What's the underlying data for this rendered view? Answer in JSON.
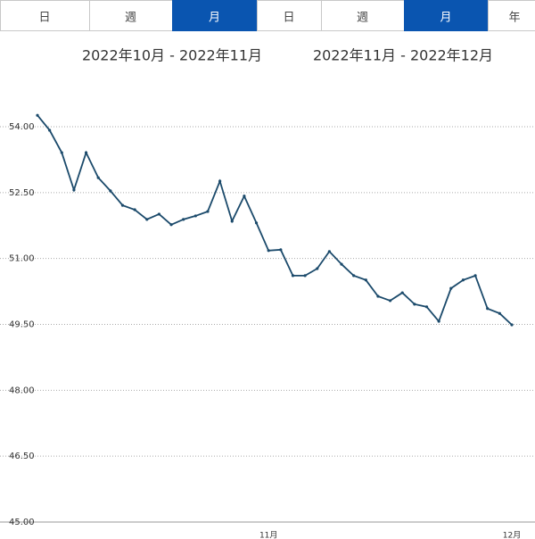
{
  "tabs": [
    {
      "labels": [
        "日",
        "週",
        "月"
      ],
      "selected": 2
    },
    {
      "labels": [
        "日",
        "週",
        "月",
        "年"
      ],
      "selected": 2
    }
  ],
  "ranges": [
    "2022年10月 - 2022年11月",
    "2022年11月 - 2022年12月"
  ],
  "chart_data": {
    "type": "line",
    "categories": [
      null,
      null,
      null,
      null,
      null,
      null,
      null,
      null,
      null,
      null,
      null,
      null,
      null,
      null,
      null,
      null,
      null,
      null,
      null,
      "11月",
      null,
      null,
      null,
      null,
      null,
      null,
      null,
      null,
      null,
      null,
      null,
      null,
      null,
      null,
      null,
      null,
      null,
      null,
      null,
      "12月"
    ],
    "series": [
      {
        "color": "#1b4a6b",
        "values": [
          54.26,
          53.92,
          53.41,
          52.56,
          53.41,
          52.84,
          52.54,
          52.21,
          52.11,
          51.89,
          52.01,
          51.77,
          51.89,
          51.97,
          52.07,
          52.76,
          51.85,
          52.42,
          51.81,
          51.18,
          51.2,
          50.61,
          50.61,
          50.77,
          51.16,
          50.87,
          50.61,
          50.51,
          50.14,
          50.04,
          50.22,
          49.96,
          49.9,
          49.57,
          50.32,
          50.51,
          50.61,
          49.86,
          49.75,
          49.49
        ]
      }
    ],
    "ylim": [
      45,
      54.5
    ],
    "yticks": [
      {
        "value": 45,
        "label": "45.00"
      },
      {
        "value": 46.5,
        "label": "46.50"
      },
      {
        "value": 48,
        "label": "48.00"
      },
      {
        "value": 49.5,
        "label": "49.50"
      },
      {
        "value": 51,
        "label": "51.00"
      },
      {
        "value": 52.5,
        "label": "52.50"
      },
      {
        "value": 54,
        "label": "54.00"
      }
    ],
    "grid": true
  }
}
